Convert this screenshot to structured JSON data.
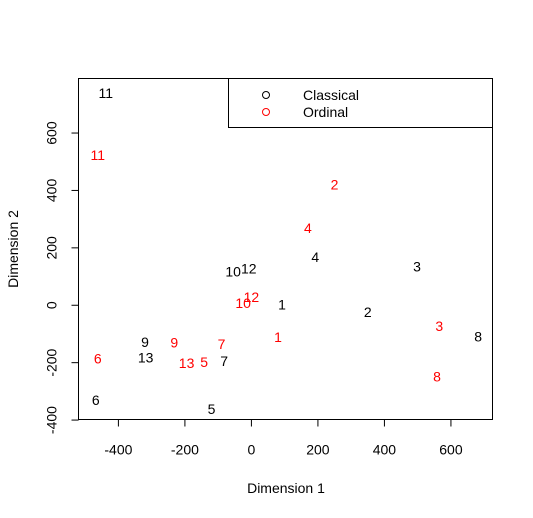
{
  "chart_data": {
    "type": "scatter",
    "title": "",
    "xlabel": "Dimension 1",
    "ylabel": "Dimension 2",
    "xlim": [
      -520,
      725
    ],
    "ylim": [
      -398,
      790
    ],
    "xticks": [
      -400,
      -200,
      0,
      200,
      400,
      600
    ],
    "yticks": [
      -400,
      -200,
      0,
      200,
      400,
      600
    ],
    "xtick_labels": [
      "-400",
      "-200",
      "0",
      "200",
      "400",
      "600"
    ],
    "ytick_labels": [
      "-400",
      "-200",
      "0",
      "200",
      "400",
      "600"
    ],
    "grid": false,
    "legend": {
      "placement": "top-right",
      "marker": "o"
    },
    "series": [
      {
        "name": "Classical",
        "color": "#000000",
        "points": [
          {
            "label": "1",
            "x": 92,
            "y": 2
          },
          {
            "label": "2",
            "x": 350,
            "y": -23
          },
          {
            "label": "3",
            "x": 498,
            "y": 135
          },
          {
            "label": "4",
            "x": 192,
            "y": 168
          },
          {
            "label": "5",
            "x": -120,
            "y": -362
          },
          {
            "label": "6",
            "x": -468,
            "y": -330
          },
          {
            "label": "7",
            "x": -82,
            "y": -195
          },
          {
            "label": "8",
            "x": 682,
            "y": -108
          },
          {
            "label": "9",
            "x": -320,
            "y": -128
          },
          {
            "label": "10",
            "x": -55,
            "y": 118
          },
          {
            "label": "11",
            "x": -438,
            "y": 740
          },
          {
            "label": "12",
            "x": -8,
            "y": 128
          },
          {
            "label": "13",
            "x": -318,
            "y": -182
          }
        ]
      },
      {
        "name": "Ordinal",
        "color": "#ff0000",
        "points": [
          {
            "label": "1",
            "x": 80,
            "y": -110
          },
          {
            "label": "2",
            "x": 250,
            "y": 420
          },
          {
            "label": "3",
            "x": 565,
            "y": -72
          },
          {
            "label": "4",
            "x": 170,
            "y": 270
          },
          {
            "label": "5",
            "x": -142,
            "y": -198
          },
          {
            "label": "6",
            "x": -462,
            "y": -185
          },
          {
            "label": "7",
            "x": -90,
            "y": -135
          },
          {
            "label": "8",
            "x": 558,
            "y": -248
          },
          {
            "label": "9",
            "x": -232,
            "y": -130
          },
          {
            "label": "10",
            "x": -25,
            "y": 8
          },
          {
            "label": "11",
            "x": -462,
            "y": 523
          },
          {
            "label": "12",
            "x": 0,
            "y": 28
          },
          {
            "label": "13",
            "x": -195,
            "y": -202
          }
        ]
      }
    ]
  }
}
